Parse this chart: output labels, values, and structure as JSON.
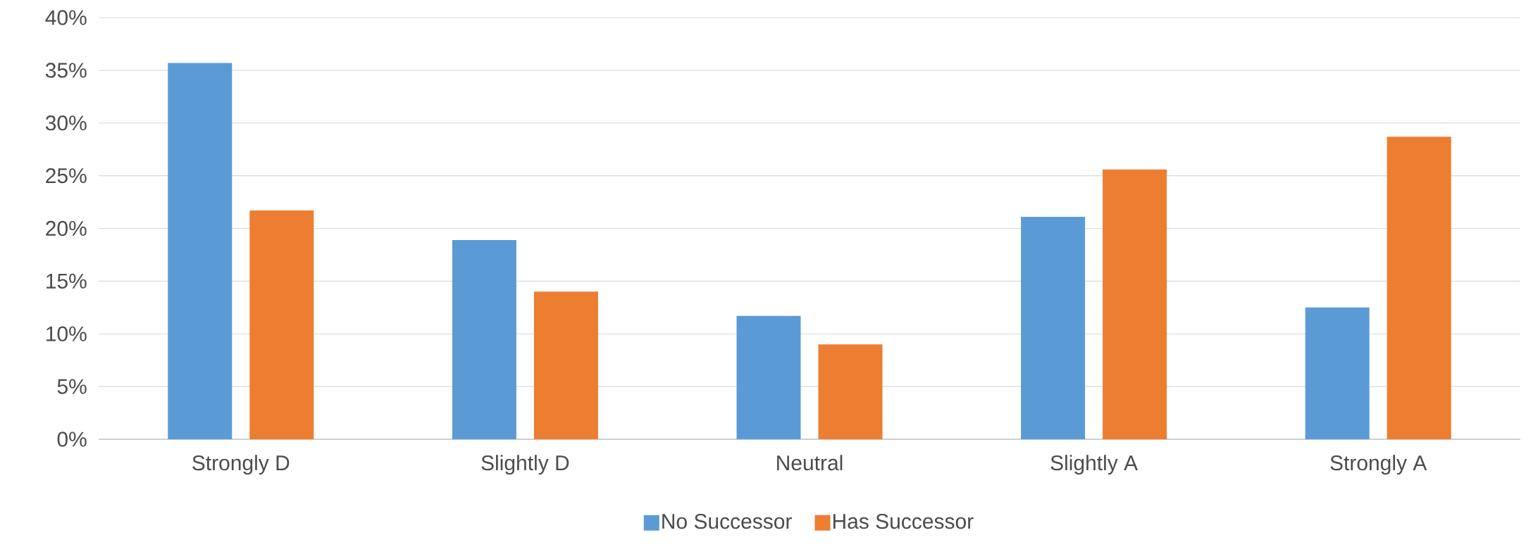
{
  "chart_data": {
    "type": "bar",
    "categories": [
      "Strongly D",
      "Slightly D",
      "Neutral",
      "Slightly A",
      "Strongly A"
    ],
    "series": [
      {
        "name": "No Successor",
        "color": "#5b9bd5",
        "values": [
          35.7,
          18.9,
          11.7,
          21.1,
          12.5
        ]
      },
      {
        "name": "Has Successor",
        "color": "#ed7d31",
        "values": [
          21.7,
          14.0,
          9.0,
          25.6,
          28.7
        ]
      }
    ],
    "ylim": [
      0,
      40
    ],
    "yticks": [
      {
        "value": 0,
        "label": "0%"
      },
      {
        "value": 5,
        "label": "5%"
      },
      {
        "value": 10,
        "label": "10%"
      },
      {
        "value": 15,
        "label": "15%"
      },
      {
        "value": 20,
        "label": "20%"
      },
      {
        "value": 25,
        "label": "25%"
      },
      {
        "value": 30,
        "label": "30%"
      },
      {
        "value": 35,
        "label": "35%"
      },
      {
        "value": 40,
        "label": "40%"
      }
    ],
    "grid": "y",
    "legend": "bottom"
  }
}
